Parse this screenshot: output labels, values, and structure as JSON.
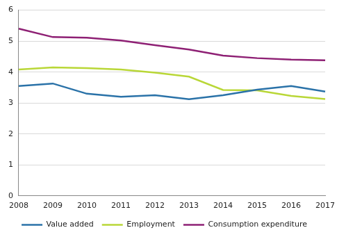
{
  "chart_data": {
    "type": "line",
    "categories": [
      "2008",
      "2009",
      "2010",
      "2011",
      "2012",
      "2013",
      "2014",
      "2015",
      "2016",
      "2017"
    ],
    "series": [
      {
        "name": "Value added",
        "color": "#2a72a8",
        "values": [
          3.55,
          3.63,
          3.3,
          3.2,
          3.25,
          3.12,
          3.25,
          3.43,
          3.55,
          3.37
        ]
      },
      {
        "name": "Employment",
        "color": "#b9d737",
        "values": [
          4.08,
          4.15,
          4.13,
          4.08,
          3.98,
          3.85,
          3.42,
          3.41,
          3.23,
          3.13
        ]
      },
      {
        "name": "Consumption expenditure",
        "color": "#8e2074",
        "values": [
          5.4,
          5.13,
          5.11,
          5.02,
          4.87,
          4.73,
          4.53,
          4.45,
          4.4,
          4.38
        ]
      }
    ],
    "ylim": [
      0,
      6
    ],
    "yticks": [
      0,
      1,
      2,
      3,
      4,
      5,
      6
    ],
    "grid": true,
    "legend": "bottom"
  }
}
